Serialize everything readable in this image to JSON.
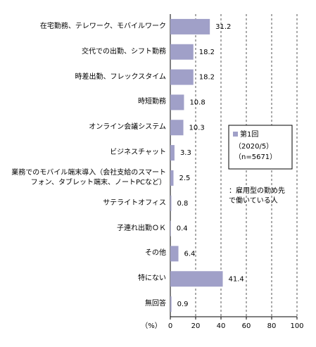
{
  "chart_data": {
    "type": "bar",
    "orientation": "horizontal",
    "categories": [
      "在宅勤務、テレワーク、モバイルワーク",
      "交代での出勤、シフト勤務",
      "時差出勤、フレックスタイム",
      "時短勤務",
      "オンライン会議システム",
      "ビジネスチャット",
      "業務でのモバイル端末導入（会社支給のスマート\nフォン、タブレット端末、ノートPCなど）",
      "サテライトオフィス",
      "子連れ出勤ＯＫ",
      "その他",
      "特にない",
      "無回答"
    ],
    "series": [
      {
        "name": "第1回",
        "color": "#a0a0c8",
        "values": [
          31.2,
          18.2,
          18.2,
          10.8,
          10.3,
          3.3,
          2.5,
          0.8,
          0.4,
          6.4,
          41.4,
          0.9
        ]
      }
    ],
    "legend_lines": [
      "（2020/5）",
      "（n=5671）"
    ],
    "annotation": "：雇用型の勤め先\nで働いている人",
    "x_unit_label": "（%）",
    "xlim": [
      0,
      100
    ],
    "xticks": [
      0,
      20,
      40,
      60,
      80,
      100
    ],
    "grid": true
  }
}
